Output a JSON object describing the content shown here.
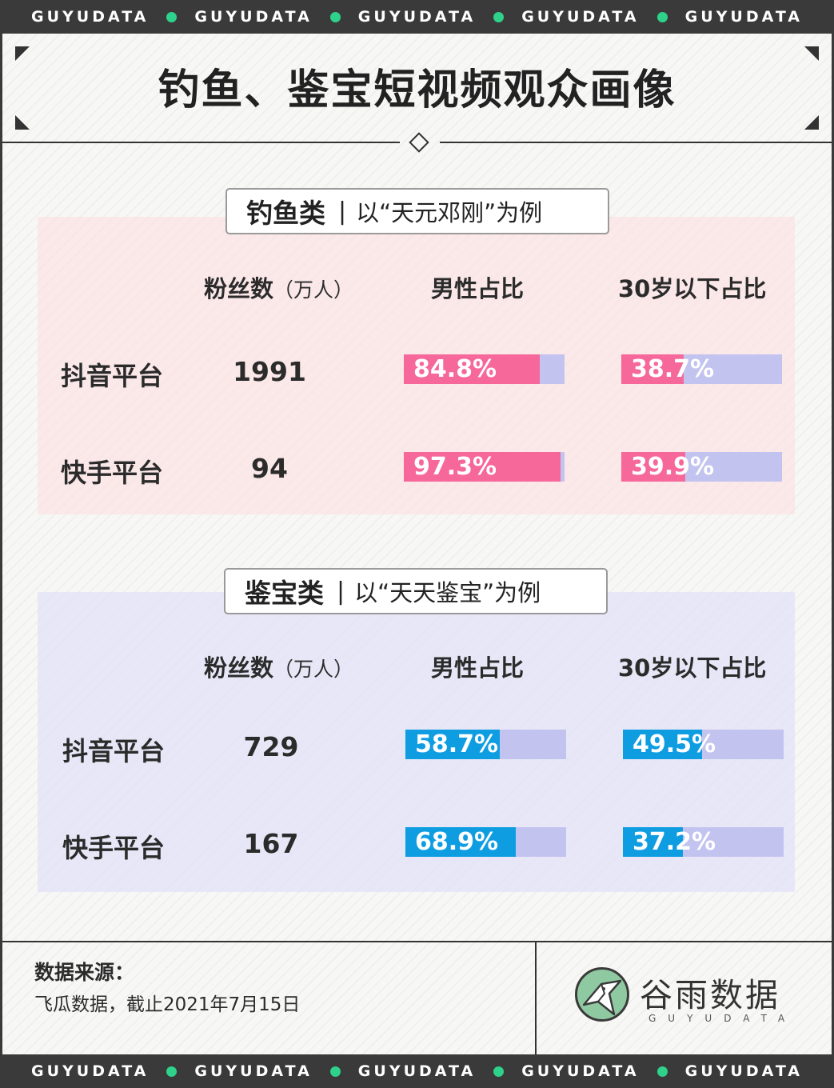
{
  "strip_text": "GUYUDATA",
  "title": "钓鱼、鉴宝短视频观众画像",
  "colors": {
    "male_fill_1": "#f6679a",
    "male_fill_2": "#0f9de2",
    "bar_bg": "#c3c3f0",
    "strip_dot": "#2ed28a"
  },
  "headers": {
    "fans": "粉丝数",
    "fans_unit": "（万人）",
    "male": "男性占比",
    "under30": "30岁以下占比"
  },
  "chart_data": [
    {
      "type": "table",
      "category": "钓鱼类",
      "example": "以“天元邓刚”为例",
      "rows": [
        {
          "platform": "抖音平台",
          "fans": "1991",
          "male_label": "84.8%",
          "male": 84.8,
          "under30_label": "38.7%",
          "under30": 38.7
        },
        {
          "platform": "快手平台",
          "fans": "94",
          "male_label": "97.3%",
          "male": 97.3,
          "under30_label": "39.9%",
          "under30": 39.9
        }
      ]
    },
    {
      "type": "table",
      "category": "鉴宝类",
      "example": "以“天天鉴宝”为例",
      "rows": [
        {
          "platform": "抖音平台",
          "fans": "729",
          "male_label": "58.7%",
          "male": 58.7,
          "under30_label": "49.5%",
          "under30": 49.5
        },
        {
          "platform": "快手平台",
          "fans": "167",
          "male_label": "68.9%",
          "male": 68.9,
          "under30_label": "37.2%",
          "under30": 37.2
        }
      ]
    }
  ],
  "footer": {
    "source_title": "数据来源：",
    "source_text": "飞瓜数据，截止2021年7月15日",
    "logo_text": "谷雨数据",
    "logo_sub": "GUYUDATA"
  }
}
